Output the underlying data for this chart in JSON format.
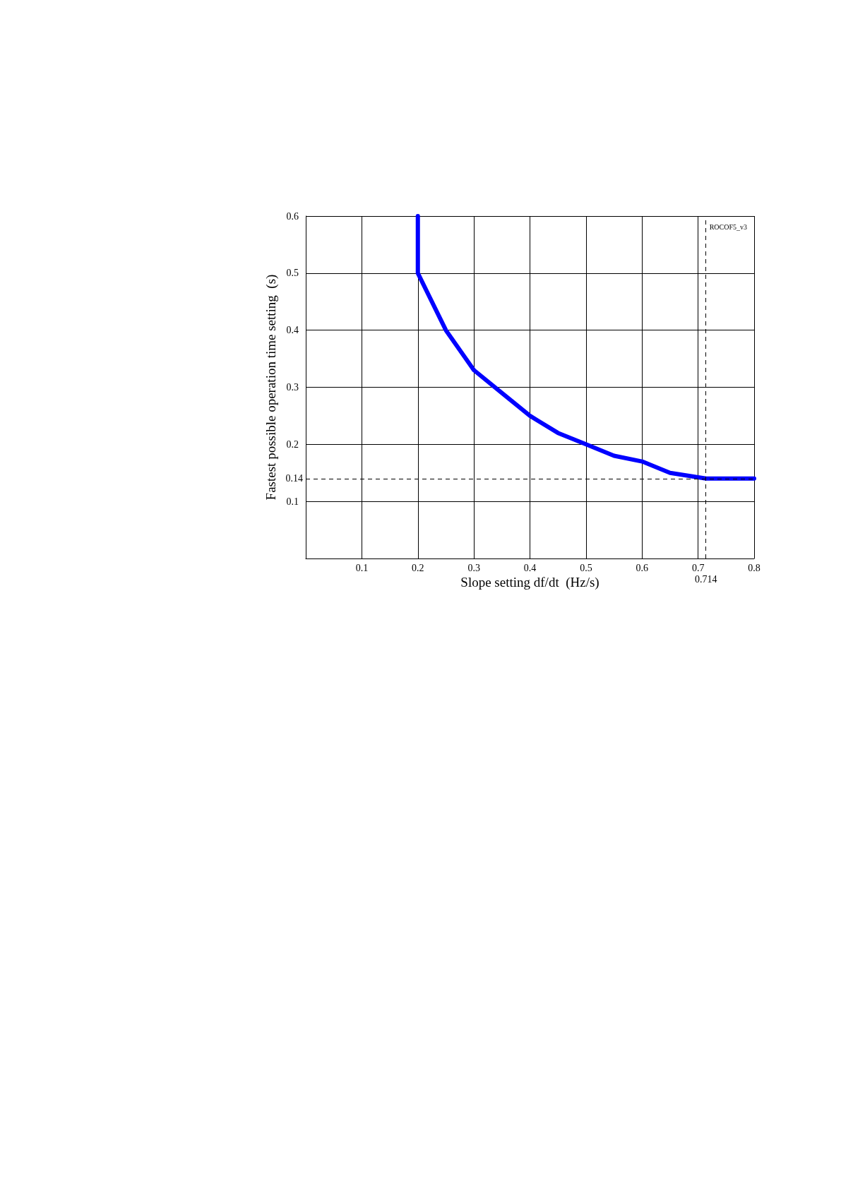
{
  "chart_data": {
    "type": "line",
    "xlabel": "Slope setting df/dt  (Hz/s)",
    "ylabel": "Fastest possible operation time setting  (s)",
    "annotations": [
      "ROCOF5_v3"
    ],
    "series": [
      {
        "color": "#0000ff",
        "x": [
          0.2,
          0.2,
          0.25,
          0.3,
          0.35,
          0.4,
          0.45,
          0.5,
          0.55,
          0.6,
          0.65,
          0.714,
          0.8
        ],
        "values": [
          0.6,
          0.5,
          0.4,
          0.33,
          0.29,
          0.25,
          0.22,
          0.2,
          0.18,
          0.17,
          0.15,
          0.14,
          0.14
        ]
      }
    ],
    "xlim": [
      0,
      0.8
    ],
    "ylim": [
      0,
      0.6
    ],
    "xticks": [
      {
        "value": 0,
        "label": null
      },
      0.1,
      0.2,
      0.3,
      0.4,
      0.5,
      0.6,
      0.7,
      0.8
    ],
    "yticks": [
      {
        "value": 0,
        "label": null
      },
      0.1,
      0.2,
      0.3,
      0.4,
      0.5,
      0.6
    ],
    "ref_lines": [
      {
        "axis": "y",
        "value": 0.14,
        "label": "0.14",
        "color": "#000000",
        "line_style": "dashed"
      },
      {
        "axis": "x",
        "value": 0.714,
        "label": "0.714",
        "color": "#000000",
        "line_style": "dashed"
      }
    ],
    "grid": true,
    "marker": "none",
    "line_style": "solid"
  }
}
